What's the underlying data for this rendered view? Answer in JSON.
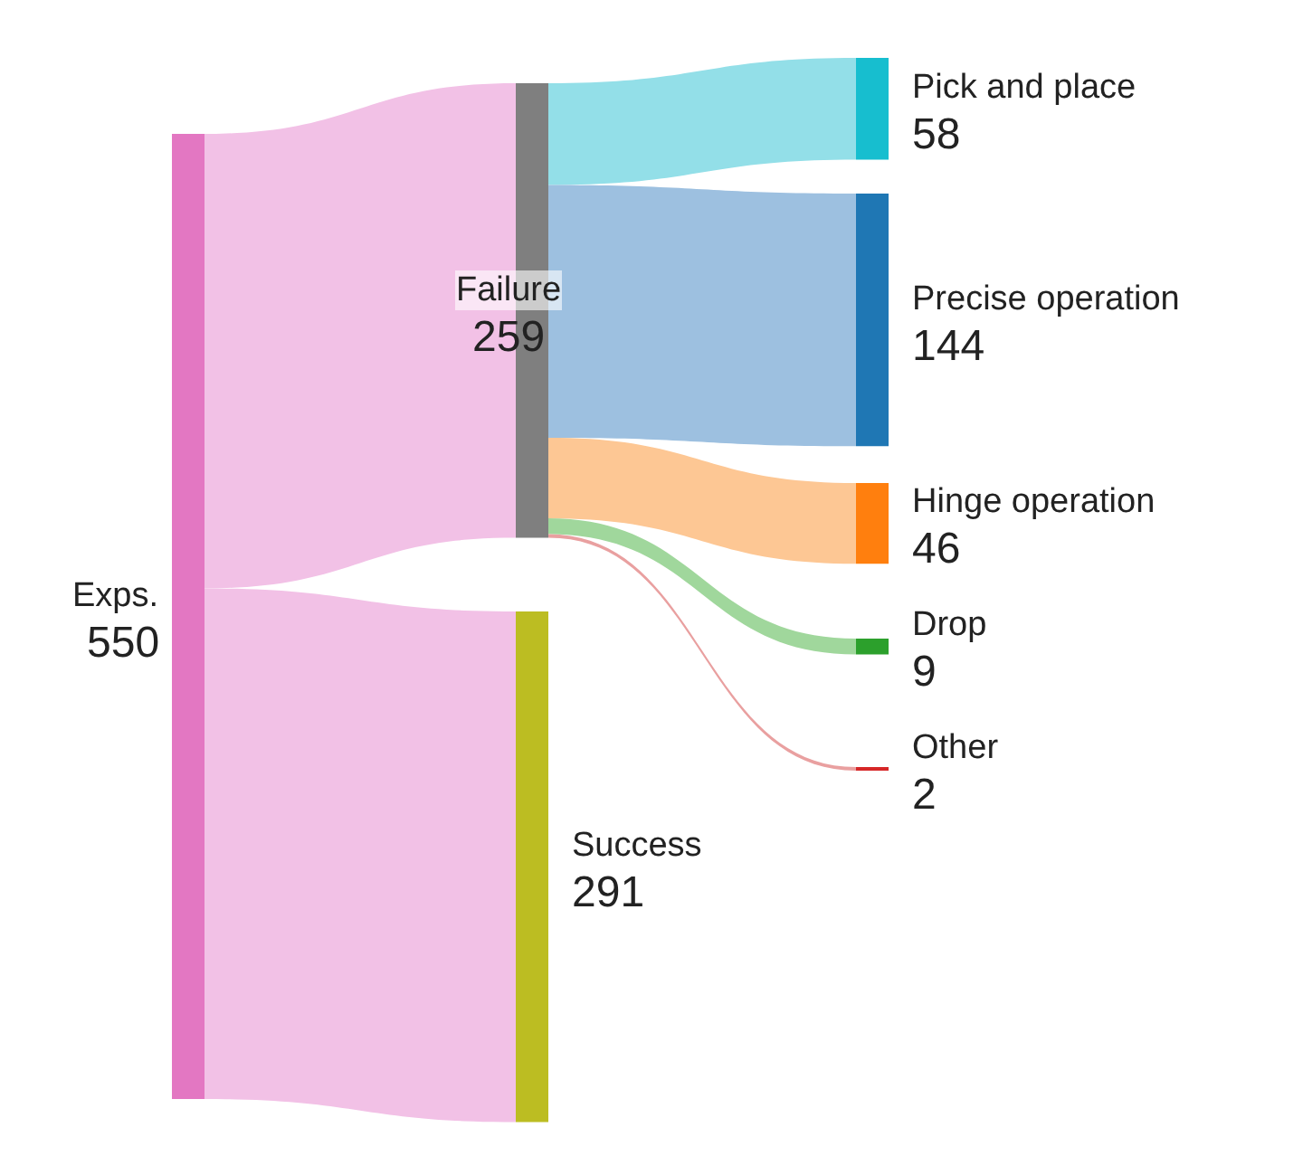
{
  "chart_data": {
    "type": "other",
    "data_labels": true,
    "categories": [
      "Exps.",
      "Failure",
      "Success",
      "Pick and place",
      "Precise operation",
      "Hinge operation",
      "Drop",
      "Other"
    ],
    "values": [
      550,
      null,
      null,
      null,
      null,
      null,
      null,
      null
    ],
    "colors": [
      "#e377c2",
      "#7f7f7f",
      "#bcbd22",
      "#17becf",
      "#1f77b4",
      "#ff7f0e",
      "#2ca02c",
      "#d62728"
    ],
    "series": [
      {
        "values": [
          null,
          259,
          291,
          null,
          null,
          null,
          null,
          null
        ],
        "colors": [
          null,
          "#f2c1e6",
          "#f2c1e6",
          null,
          null,
          null,
          null,
          null
        ]
      },
      {
        "values": [
          null,
          null,
          null,
          58,
          144,
          46,
          9,
          2
        ],
        "colors": [
          null,
          null,
          null,
          "#93dfe8",
          "#9dc0e0",
          "#fdc794",
          "#a0d79c",
          "#e9a0a0"
        ]
      }
    ]
  }
}
